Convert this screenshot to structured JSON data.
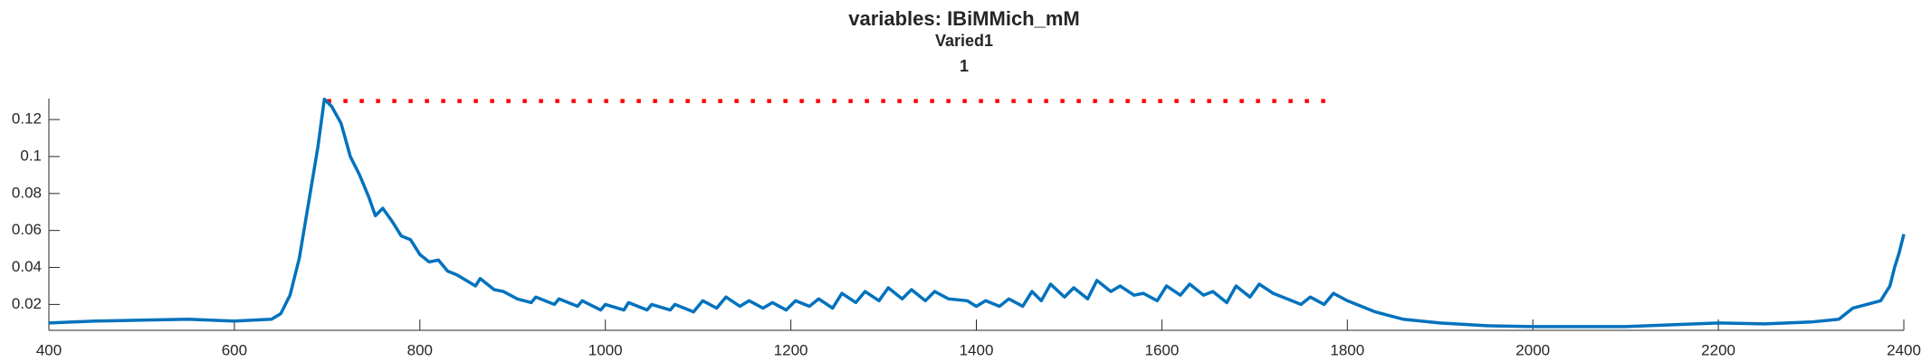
{
  "chart_data": {
    "type": "line",
    "title": "variables: IBiMMich_mM",
    "subtitle": "Varied1",
    "subtitle2": "1",
    "x": [
      400,
      450,
      500,
      550,
      600,
      640,
      650,
      660,
      670,
      680,
      690,
      697,
      705,
      715,
      725,
      735,
      745,
      752,
      760,
      770,
      780,
      790,
      800,
      810,
      820,
      830,
      840,
      850,
      860,
      865,
      880,
      890,
      905,
      920,
      925,
      945,
      950,
      970,
      975,
      995,
      1000,
      1020,
      1025,
      1045,
      1050,
      1070,
      1075,
      1095,
      1105,
      1120,
      1130,
      1145,
      1155,
      1170,
      1180,
      1195,
      1205,
      1220,
      1230,
      1245,
      1255,
      1270,
      1280,
      1295,
      1305,
      1320,
      1330,
      1345,
      1355,
      1370,
      1390,
      1400,
      1410,
      1425,
      1435,
      1450,
      1460,
      1470,
      1480,
      1495,
      1505,
      1520,
      1530,
      1545,
      1555,
      1570,
      1580,
      1595,
      1605,
      1620,
      1630,
      1645,
      1655,
      1670,
      1680,
      1695,
      1705,
      1720,
      1740,
      1750,
      1760,
      1775,
      1785,
      1800,
      1830,
      1860,
      1900,
      1950,
      2000,
      2100,
      2200,
      2250,
      2300,
      2330,
      2345,
      2360,
      2375,
      2385,
      2390,
      2395,
      2400
    ],
    "series": [
      {
        "color": "#0072bd",
        "values": [
          0.01,
          0.011,
          0.0115,
          0.012,
          0.011,
          0.012,
          0.015,
          0.025,
          0.045,
          0.075,
          0.105,
          0.131,
          0.127,
          0.118,
          0.1,
          0.09,
          0.078,
          0.068,
          0.072,
          0.065,
          0.057,
          0.055,
          0.047,
          0.043,
          0.044,
          0.038,
          0.036,
          0.033,
          0.03,
          0.034,
          0.028,
          0.027,
          0.023,
          0.021,
          0.024,
          0.02,
          0.023,
          0.019,
          0.022,
          0.017,
          0.02,
          0.017,
          0.021,
          0.017,
          0.02,
          0.017,
          0.02,
          0.016,
          0.022,
          0.018,
          0.024,
          0.019,
          0.022,
          0.018,
          0.021,
          0.017,
          0.022,
          0.019,
          0.023,
          0.018,
          0.026,
          0.021,
          0.027,
          0.022,
          0.029,
          0.023,
          0.028,
          0.022,
          0.027,
          0.023,
          0.022,
          0.019,
          0.022,
          0.019,
          0.023,
          0.019,
          0.027,
          0.022,
          0.031,
          0.024,
          0.029,
          0.023,
          0.033,
          0.027,
          0.03,
          0.025,
          0.026,
          0.022,
          0.03,
          0.025,
          0.031,
          0.025,
          0.027,
          0.021,
          0.03,
          0.024,
          0.031,
          0.026,
          0.022,
          0.02,
          0.024,
          0.02,
          0.026,
          0.022,
          0.016,
          0.012,
          0.01,
          0.0085,
          0.008,
          0.008,
          0.01,
          0.0095,
          0.0105,
          0.012,
          0.018,
          0.02,
          0.022,
          0.03,
          0.04,
          0.048,
          0.058
        ]
      }
    ],
    "reference_line": {
      "y": 0.13,
      "x": [
        700,
        1780
      ],
      "color": "#ff0000"
    },
    "xlim": [
      400,
      2400
    ],
    "ylim": [
      0.006,
      0.1313
    ],
    "xticks": [
      400,
      600,
      800,
      1000,
      1200,
      1400,
      1600,
      1800,
      2000,
      2200,
      2400
    ],
    "yticks": [
      0.02,
      0.04,
      0.06,
      0.08,
      0.1,
      0.12
    ]
  }
}
